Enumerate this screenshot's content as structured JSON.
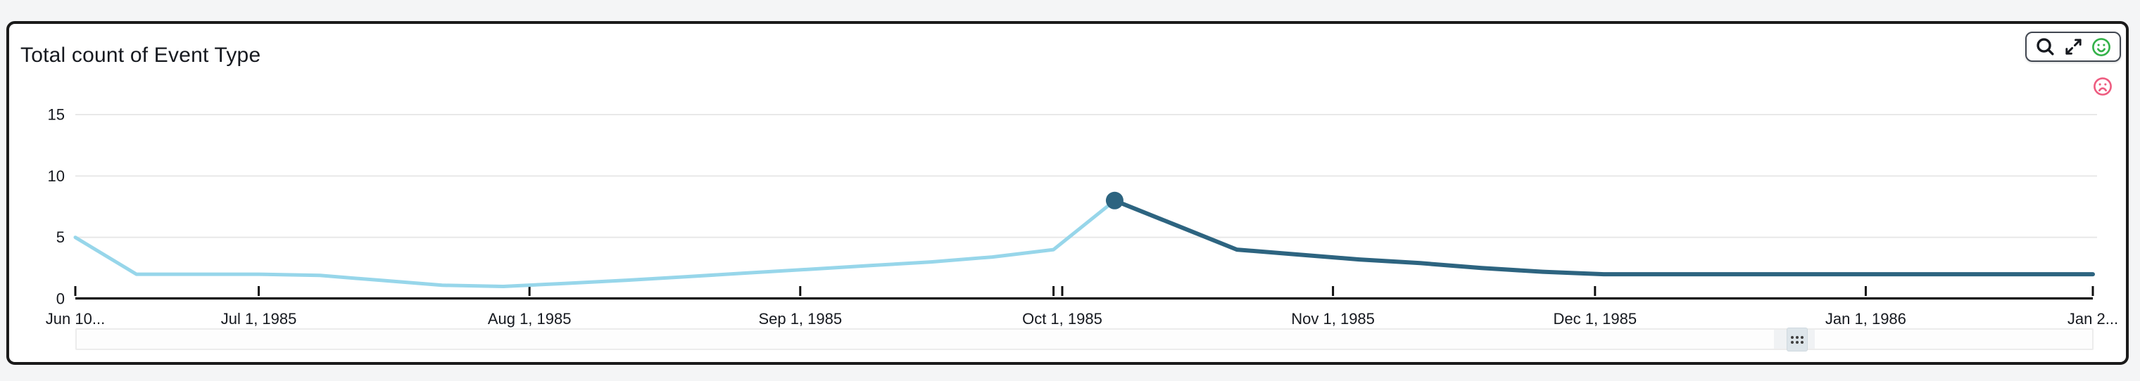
{
  "card": {
    "title": "Total count of Event Type"
  },
  "toolbar": {
    "icons": [
      {
        "id": "zoom",
        "label": "Zoom"
      },
      {
        "id": "expand",
        "label": "Expand visual"
      },
      {
        "id": "feedback_positive",
        "label": "Helpful"
      }
    ]
  },
  "feedback": {
    "negative_label": "Not helpful",
    "positive_color": "#33b249",
    "negative_color": "#ee5c80"
  },
  "chart_data": {
    "type": "line",
    "title": "Total count of Event Type",
    "xlabel": "",
    "ylabel": "",
    "x_type": "date",
    "x_start": "1985-06-10",
    "x_end": "1986-01-27",
    "ylim": [
      0,
      15
    ],
    "grid": true,
    "legend": "none",
    "y_ticks": [
      {
        "value": 0,
        "label": "0"
      },
      {
        "value": 5,
        "label": "5"
      },
      {
        "value": 10,
        "label": "10"
      },
      {
        "value": 15,
        "label": "15"
      }
    ],
    "x_ticks": [
      {
        "date": "1985-06-10",
        "label": "Jun 10..."
      },
      {
        "date": "1985-07-01",
        "label": "Jul 1, 1985"
      },
      {
        "date": "1985-08-01",
        "label": "Aug 1, 1985"
      },
      {
        "date": "1985-09-01",
        "label": "Sep 1, 1985"
      },
      {
        "date": "1985-10-01",
        "label": "Oct 1, 1985"
      },
      {
        "date": "1985-11-01",
        "label": "Nov 1, 1985"
      },
      {
        "date": "1985-12-01",
        "label": "Dec 1, 1985"
      },
      {
        "date": "1986-01-01",
        "label": "Jan 1, 1986"
      },
      {
        "date": "1986-01-27",
        "label": "Jan 2..."
      }
    ],
    "extra_tick_dates": [
      "1985-09-30"
    ],
    "series": [
      {
        "name": "count-before-highlight",
        "color": "#97d6ea",
        "width": 5,
        "points": [
          [
            "1985-06-10",
            5
          ],
          [
            "1985-06-17",
            2
          ],
          [
            "1985-06-24",
            2
          ],
          [
            "1985-07-01",
            2
          ],
          [
            "1985-07-08",
            1.9
          ],
          [
            "1985-07-15",
            1.5
          ],
          [
            "1985-07-22",
            1.1
          ],
          [
            "1985-07-29",
            1
          ],
          [
            "1985-08-05",
            1.25
          ],
          [
            "1985-08-12",
            1.5
          ],
          [
            "1985-08-19",
            1.8
          ],
          [
            "1985-08-26",
            2.1
          ],
          [
            "1985-09-02",
            2.4
          ],
          [
            "1985-09-09",
            2.7
          ],
          [
            "1985-09-16",
            3.0
          ],
          [
            "1985-09-23",
            3.4
          ],
          [
            "1985-09-30",
            4
          ],
          [
            "1985-10-07",
            8
          ]
        ]
      },
      {
        "name": "count-after-highlight",
        "color": "#2d6480",
        "width": 6,
        "points": [
          [
            "1985-10-07",
            8
          ],
          [
            "1985-10-14",
            6
          ],
          [
            "1985-10-21",
            4
          ],
          [
            "1985-10-28",
            3.6
          ],
          [
            "1985-11-04",
            3.2
          ],
          [
            "1985-11-11",
            2.9
          ],
          [
            "1985-11-18",
            2.5
          ],
          [
            "1985-11-25",
            2.2
          ],
          [
            "1985-12-02",
            2
          ],
          [
            "1985-12-09",
            2
          ],
          [
            "1985-12-16",
            2
          ],
          [
            "1985-12-23",
            2
          ],
          [
            "1985-12-30",
            2
          ],
          [
            "1986-01-06",
            2
          ],
          [
            "1986-01-13",
            2
          ],
          [
            "1986-01-20",
            2
          ],
          [
            "1986-01-27",
            2
          ]
        ]
      }
    ],
    "highlight_point": {
      "date": "1985-10-07",
      "value": 8,
      "color": "#2d6480",
      "radius": 12.5
    },
    "colors": {
      "grid": "#e8e8e8",
      "axis": "#101010",
      "tick_label": "#16191f"
    }
  }
}
